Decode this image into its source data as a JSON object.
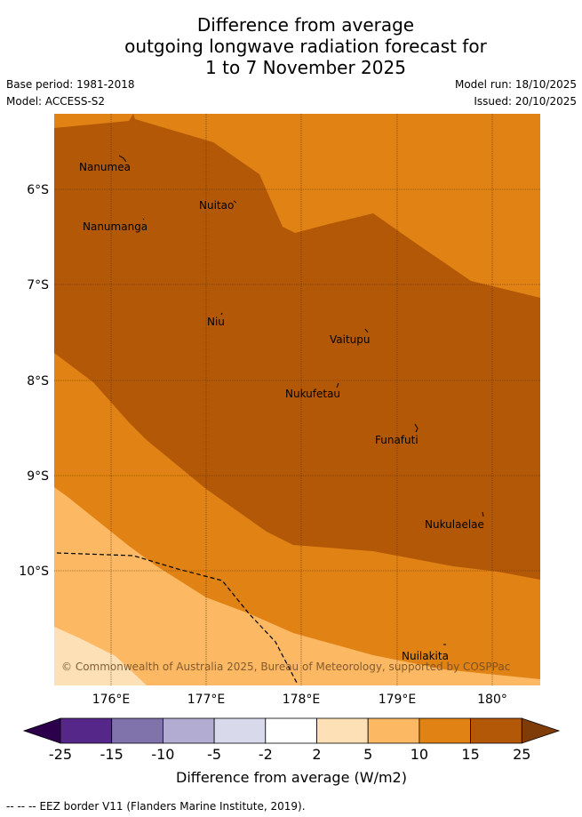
{
  "header": {
    "title_line1": "Difference from average",
    "title_line2": "outgoing longwave radiation forecast for",
    "title_line3": "1 to 7 November 2025",
    "base_period": "Base period: 1981-2018",
    "model": "Model: ACCESS-S2",
    "model_run": "Model run: 18/10/2025",
    "issued": "Issued: 20/10/2025"
  },
  "map": {
    "lat_labels": [
      "6°S",
      "7°S",
      "8°S",
      "9°S",
      "10°S"
    ],
    "lon_labels": [
      "176°E",
      "177°E",
      "178°E",
      "179°E",
      "180°"
    ],
    "places": [
      "Nanumea",
      "Nuitao",
      "Nanumanga",
      "Niu",
      "Vaitupu",
      "Nukufetau",
      "Funafuti",
      "Nukulaelae",
      "Nuilakita"
    ],
    "copyright": "© Commonwealth of Australia 2025, Bureau of Meteorology, supported by COSPPac",
    "colors": {
      "c_10_15": "#e08214",
      "c_15_25": "#b35806",
      "c_5_10": "#fdb863",
      "c_2_5": "#fee0b6"
    }
  },
  "colorbar": {
    "ticks": [
      "-25",
      "-15",
      "-10",
      "-5",
      "-2",
      "2",
      "5",
      "10",
      "15",
      "25"
    ],
    "label": "Difference from average (W/m2)",
    "colors": [
      "#2d004b",
      "#542788",
      "#8073ac",
      "#b2abd2",
      "#d8daeb",
      "#ffffff",
      "#fee0b6",
      "#fdb863",
      "#e08214",
      "#b35806",
      "#7f3b08"
    ]
  },
  "footer": {
    "legend_symbol": "-- -- --",
    "legend_text": "EEZ border V11 (Flanders Marine Institute, 2019)."
  }
}
